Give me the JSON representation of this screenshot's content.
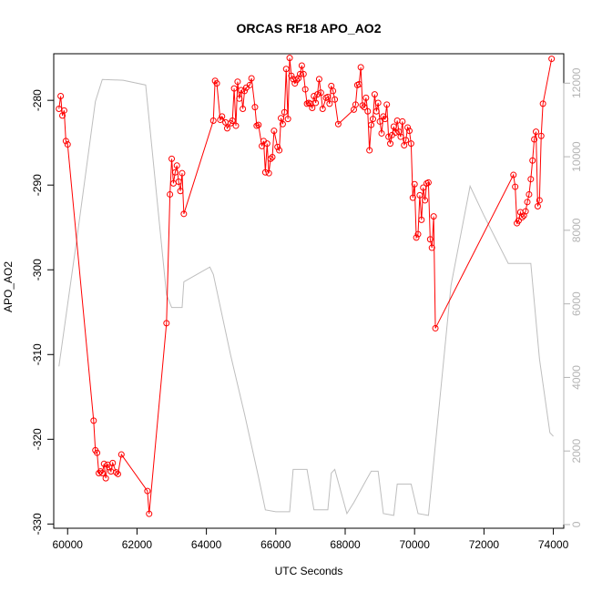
{
  "chart_data": {
    "type": "line",
    "title": "ORCAS RF18 APO_AO2",
    "xlabel": "UTC Seconds",
    "ylabel": "APO_AO2",
    "xlim": [
      59600,
      74300
    ],
    "ylim": [
      -330.5,
      -274.5
    ],
    "y2lim": [
      -100,
      12800
    ],
    "xticks": [
      60000,
      62000,
      64000,
      66000,
      68000,
      70000,
      72000,
      74000
    ],
    "yticks": [
      -330,
      -320,
      -310,
      -300,
      -290,
      -280
    ],
    "y2ticks": [
      0,
      2000,
      4000,
      6000,
      8000,
      10000,
      12000
    ],
    "colors": {
      "primary": "#ff0000",
      "secondary": "#bebebe",
      "axis": "#000000",
      "right_axis": "#b4b4b4"
    },
    "series": [
      {
        "role": "primary",
        "axis": "left",
        "style": "line+open-circles",
        "points": [
          [
            59750,
            -281
          ],
          [
            59800,
            -279.5
          ],
          [
            59850,
            -281.8
          ],
          [
            59900,
            -281.2
          ],
          [
            59950,
            -284.8
          ],
          [
            60000,
            -285.2
          ],
          [
            60750,
            -317.8
          ],
          [
            60800,
            -321.3
          ],
          [
            60850,
            -321.6
          ],
          [
            60900,
            -324
          ],
          [
            60950,
            -323.8
          ],
          [
            61000,
            -324
          ],
          [
            61050,
            -322.9
          ],
          [
            61100,
            -324.6
          ],
          [
            61150,
            -323
          ],
          [
            61200,
            -323.3
          ],
          [
            61250,
            -323.8
          ],
          [
            61300,
            -322.8
          ],
          [
            61400,
            -323.9
          ],
          [
            61450,
            -324.1
          ],
          [
            61550,
            -321.8
          ],
          [
            62300,
            -326.1
          ],
          [
            62350,
            -328.8
          ],
          [
            62850,
            -306.3
          ],
          [
            62950,
            -291.1
          ],
          [
            63000,
            -286.9
          ],
          [
            63050,
            -289.8
          ],
          [
            63100,
            -288.5
          ],
          [
            63150,
            -287.7
          ],
          [
            63200,
            -289.6
          ],
          [
            63250,
            -290.7
          ],
          [
            63300,
            -288.6
          ],
          [
            63350,
            -293.4
          ],
          [
            64200,
            -282.4
          ],
          [
            64250,
            -277.7
          ],
          [
            64300,
            -278
          ],
          [
            64400,
            -282.3
          ],
          [
            64450,
            -281.9
          ],
          [
            64550,
            -282.6
          ],
          [
            64600,
            -283.3
          ],
          [
            64700,
            -282.7
          ],
          [
            64750,
            -282.4
          ],
          [
            64800,
            -278.6
          ],
          [
            64850,
            -283
          ],
          [
            64900,
            -277.8
          ],
          [
            64950,
            -279.8
          ],
          [
            65000,
            -278.8
          ],
          [
            65050,
            -281
          ],
          [
            65100,
            -278.9
          ],
          [
            65150,
            -278.5
          ],
          [
            65250,
            -278.2
          ],
          [
            65300,
            -277.4
          ],
          [
            65400,
            -280.8
          ],
          [
            65450,
            -283
          ],
          [
            65500,
            -282.9
          ],
          [
            65600,
            -285.4
          ],
          [
            65650,
            -284.8
          ],
          [
            65700,
            -288.5
          ],
          [
            65750,
            -285.1
          ],
          [
            65800,
            -288.6
          ],
          [
            65850,
            -286.9
          ],
          [
            65900,
            -286.7
          ],
          [
            65950,
            -283.6
          ],
          [
            66050,
            -285.5
          ],
          [
            66100,
            -285.9
          ],
          [
            66150,
            -282.1
          ],
          [
            66200,
            -282.8
          ],
          [
            66250,
            -281.4
          ],
          [
            66300,
            -276.3
          ],
          [
            66350,
            -282.2
          ],
          [
            66400,
            -275
          ],
          [
            66450,
            -277.1
          ],
          [
            66500,
            -277.5
          ],
          [
            66550,
            -278
          ],
          [
            66600,
            -277.6
          ],
          [
            66650,
            -277.4
          ],
          [
            66700,
            -276.9
          ],
          [
            66750,
            -275.9
          ],
          [
            66800,
            -276.9
          ],
          [
            66850,
            -278.7
          ],
          [
            66900,
            -280.4
          ],
          [
            66950,
            -280.3
          ],
          [
            67000,
            -280.4
          ],
          [
            67050,
            -280.9
          ],
          [
            67100,
            -279.5
          ],
          [
            67150,
            -280.3
          ],
          [
            67200,
            -279.3
          ],
          [
            67250,
            -277.5
          ],
          [
            67300,
            -279.1
          ],
          [
            67350,
            -281
          ],
          [
            67450,
            -279.7
          ],
          [
            67500,
            -279.6
          ],
          [
            67550,
            -280.4
          ],
          [
            67600,
            -278.3
          ],
          [
            67650,
            -278.9
          ],
          [
            67700,
            -279.9
          ],
          [
            67800,
            -282.8
          ],
          [
            68250,
            -281.1
          ],
          [
            68300,
            -280.5
          ],
          [
            68350,
            -278.2
          ],
          [
            68400,
            -278.1
          ],
          [
            68450,
            -276.1
          ],
          [
            68500,
            -280.6
          ],
          [
            68550,
            -280.8
          ],
          [
            68600,
            -279.7
          ],
          [
            68650,
            -281.3
          ],
          [
            68700,
            -285.9
          ],
          [
            68750,
            -282.9
          ],
          [
            68800,
            -282.2
          ],
          [
            68850,
            -279.3
          ],
          [
            68900,
            -281.3
          ],
          [
            68950,
            -280.3
          ],
          [
            69000,
            -282.5
          ],
          [
            69050,
            -283.9
          ],
          [
            69100,
            -281.9
          ],
          [
            69150,
            -282.2
          ],
          [
            69200,
            -280.5
          ],
          [
            69250,
            -284.3
          ],
          [
            69300,
            -285.1
          ],
          [
            69350,
            -284.1
          ],
          [
            69400,
            -283.1
          ],
          [
            69450,
            -283.8
          ],
          [
            69500,
            -282.4
          ],
          [
            69550,
            -283.7
          ],
          [
            69600,
            -284.3
          ],
          [
            69650,
            -282.5
          ],
          [
            69700,
            -285.3
          ],
          [
            69750,
            -284.7
          ],
          [
            69800,
            -283.2
          ],
          [
            69850,
            -283.6
          ],
          [
            69900,
            -285.1
          ],
          [
            69950,
            -291.5
          ],
          [
            70000,
            -289.9
          ],
          [
            70050,
            -296.2
          ],
          [
            70100,
            -295.8
          ],
          [
            70150,
            -291.2
          ],
          [
            70200,
            -294.1
          ],
          [
            70250,
            -290.3
          ],
          [
            70300,
            -291.8
          ],
          [
            70350,
            -289.8
          ],
          [
            70400,
            -289.7
          ],
          [
            70450,
            -296.4
          ],
          [
            70500,
            -297.4
          ],
          [
            70550,
            -293.7
          ],
          [
            70600,
            -306.9
          ],
          [
            72850,
            -288.8
          ],
          [
            72900,
            -290.2
          ],
          [
            72950,
            -294.5
          ],
          [
            73000,
            -294.2
          ],
          [
            73050,
            -293.2
          ],
          [
            73100,
            -293.8
          ],
          [
            73150,
            -293.6
          ],
          [
            73200,
            -293.1
          ],
          [
            73250,
            -292
          ],
          [
            73300,
            -291.1
          ],
          [
            73350,
            -289.3
          ],
          [
            73400,
            -287.1
          ],
          [
            73450,
            -284.6
          ],
          [
            73500,
            -283.7
          ],
          [
            73550,
            -292.5
          ],
          [
            73600,
            -291.8
          ],
          [
            73650,
            -284.2
          ],
          [
            73700,
            -280.4
          ],
          [
            73950,
            -275.1
          ]
        ]
      },
      {
        "role": "secondary",
        "axis": "right",
        "style": "line",
        "points": [
          [
            59750,
            4300
          ],
          [
            60300,
            8000
          ],
          [
            60800,
            11500
          ],
          [
            61000,
            12100
          ],
          [
            61600,
            12080
          ],
          [
            62250,
            11950
          ],
          [
            62850,
            6250
          ],
          [
            63000,
            5900
          ],
          [
            63300,
            5900
          ],
          [
            63350,
            6600
          ],
          [
            64100,
            7000
          ],
          [
            64200,
            6800
          ],
          [
            64700,
            4600
          ],
          [
            65100,
            3000
          ],
          [
            65500,
            1300
          ],
          [
            65700,
            400
          ],
          [
            66000,
            350
          ],
          [
            66400,
            350
          ],
          [
            66500,
            1500
          ],
          [
            66900,
            1500
          ],
          [
            67100,
            400
          ],
          [
            67500,
            400
          ],
          [
            67600,
            1400
          ],
          [
            67700,
            1500
          ],
          [
            68050,
            300
          ],
          [
            68250,
            600
          ],
          [
            68600,
            1200
          ],
          [
            68750,
            1450
          ],
          [
            68950,
            1450
          ],
          [
            69100,
            300
          ],
          [
            69400,
            250
          ],
          [
            69500,
            1100
          ],
          [
            69900,
            1100
          ],
          [
            70100,
            300
          ],
          [
            70400,
            250
          ],
          [
            71050,
            6500
          ],
          [
            71600,
            9200
          ],
          [
            72000,
            8400
          ],
          [
            72700,
            7100
          ],
          [
            73100,
            7100
          ],
          [
            73350,
            7100
          ],
          [
            73600,
            4500
          ],
          [
            73900,
            2500
          ],
          [
            74000,
            2400
          ]
        ]
      }
    ]
  }
}
